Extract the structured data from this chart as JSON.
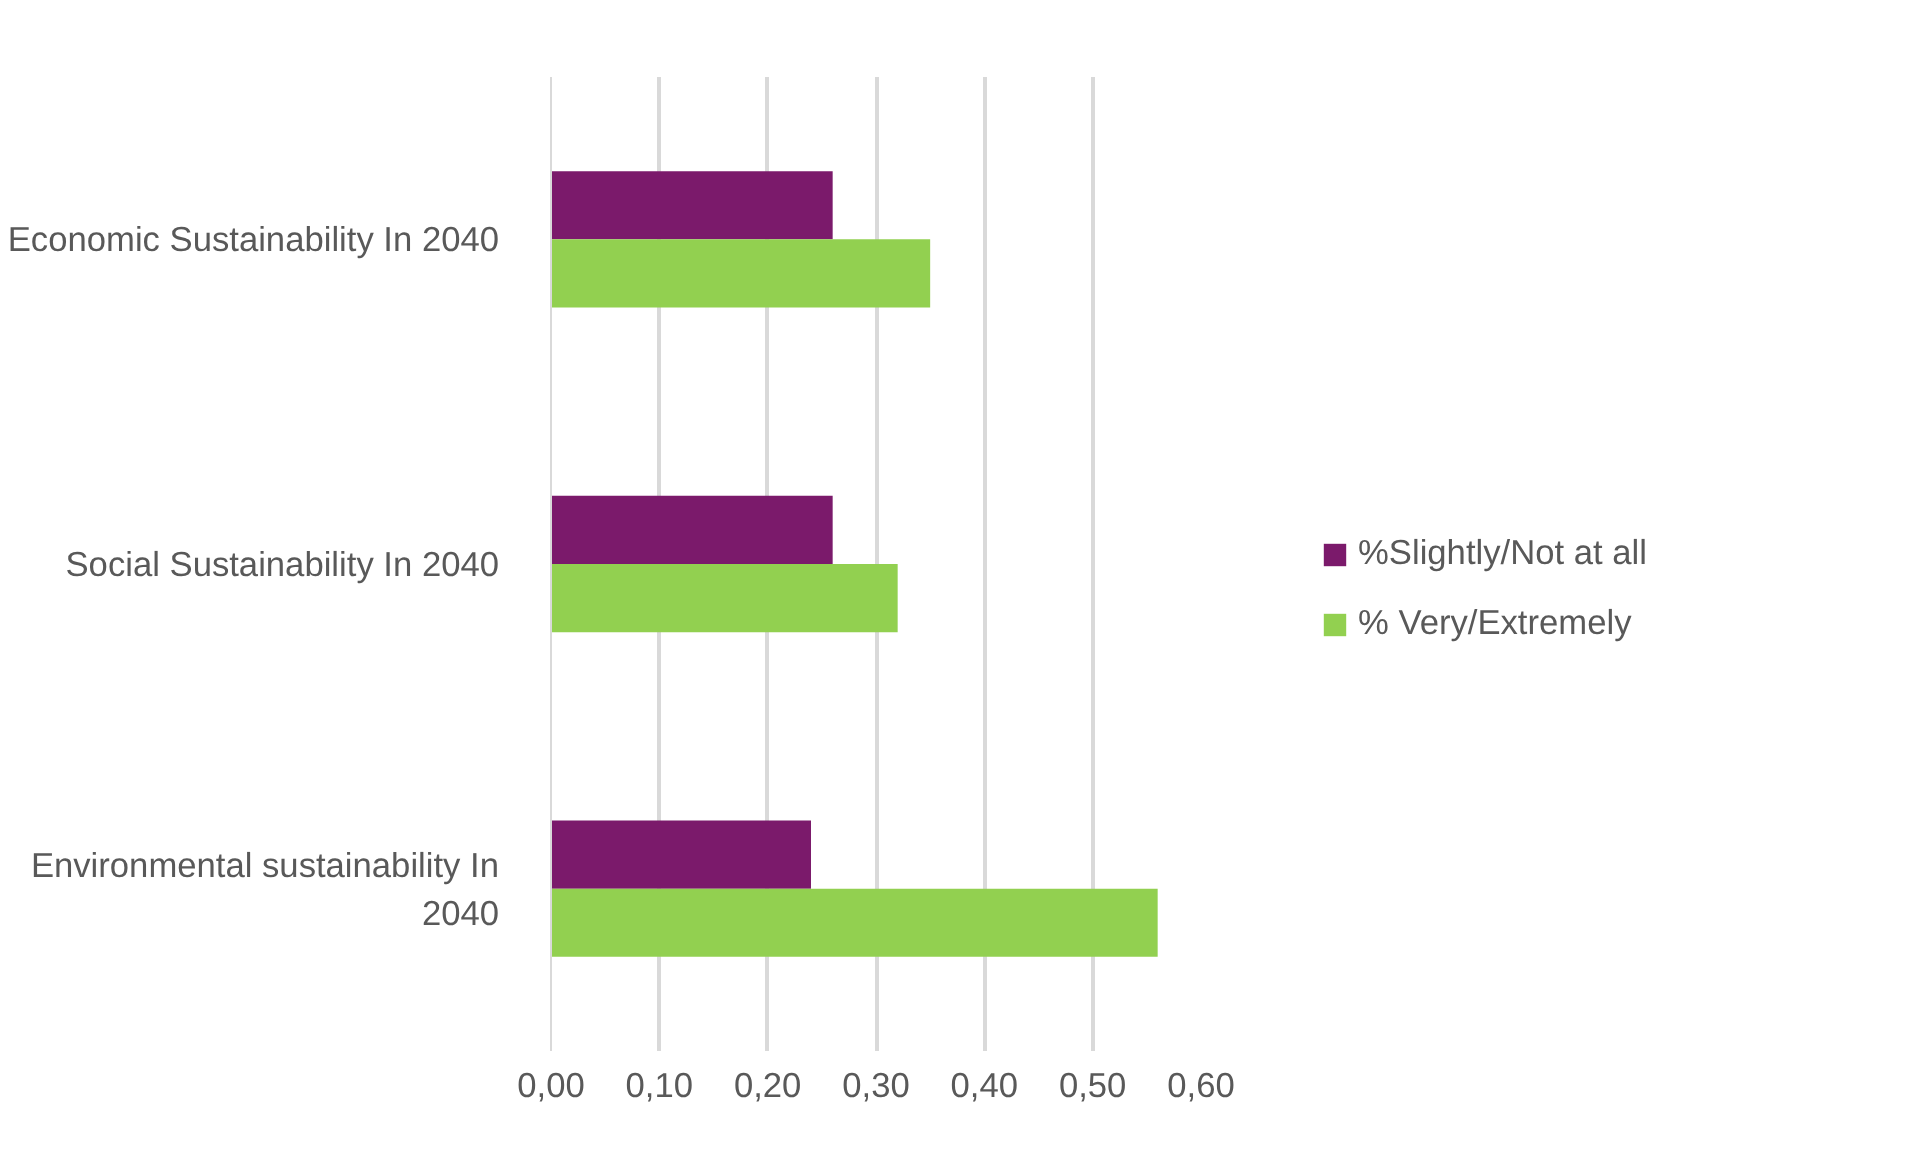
{
  "chart_data": {
    "type": "bar",
    "orientation": "horizontal",
    "categories": [
      "Economic Sustainability In 2040",
      "Social Sustainability In 2040",
      "Environmental sustainability In 2040"
    ],
    "series": [
      {
        "name": "%Slightly/Not at all",
        "color": "#7b1a6b",
        "values": [
          0.26,
          0.26,
          0.24
        ]
      },
      {
        "name": "% Very/Extremely",
        "color": "#92d050",
        "values": [
          0.35,
          0.32,
          0.56
        ]
      }
    ],
    "xlim": [
      0,
      0.6
    ],
    "xticks": [
      {
        "value": 0,
        "label": "0,00"
      },
      {
        "value": 0.1,
        "label": "0,10"
      },
      {
        "value": 0.2,
        "label": "0,20"
      },
      {
        "value": 0.3,
        "label": "0,30"
      },
      {
        "value": 0.4,
        "label": "0,40"
      },
      {
        "value": 0.5,
        "label": "0,50"
      },
      {
        "value": 0.6,
        "label": "0,60"
      }
    ],
    "grid": "x",
    "legend": "right"
  }
}
